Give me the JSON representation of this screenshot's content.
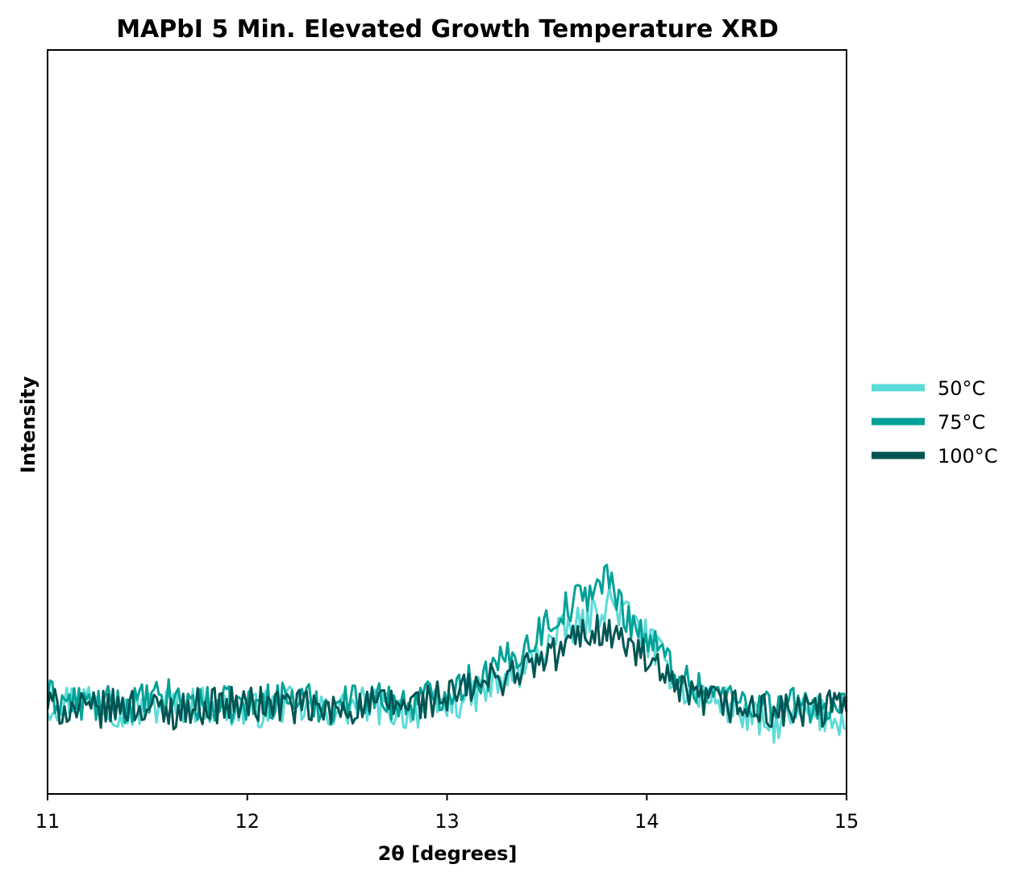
{
  "chart_data": {
    "type": "line",
    "title": "MAPbI 5 Min. Elevated Growth Temperature XRD",
    "xlabel": "2θ [degrees]",
    "ylabel": "Intensity",
    "xlim": [
      11,
      15
    ],
    "ylim": [
      0,
      100
    ],
    "xticks": [
      "11",
      "12",
      "13",
      "14",
      "15"
    ],
    "yticks_visible": false,
    "grid": false,
    "legend": {
      "placement": "outside-right",
      "entries": [
        "50°C",
        "75°C",
        "100°C"
      ]
    },
    "series": [
      {
        "name": "50°C",
        "color": "#5cdbd8",
        "x": [
          11.0,
          11.2,
          11.4,
          11.6,
          11.8,
          12.0,
          12.2,
          12.4,
          12.6,
          12.8,
          13.0,
          13.2,
          13.4,
          13.5,
          13.6,
          13.7,
          13.8,
          13.9,
          14.0,
          14.1,
          14.2,
          14.4,
          14.6,
          14.8,
          15.0
        ],
        "y": [
          12,
          13,
          11,
          12,
          12,
          11,
          12,
          11,
          12,
          11,
          12,
          14,
          17,
          20,
          22,
          23,
          26,
          24,
          21,
          17,
          14,
          12,
          9,
          11,
          10
        ]
      },
      {
        "name": "75°C",
        "color": "#03a197",
        "x": [
          11.0,
          11.2,
          11.4,
          11.6,
          11.8,
          12.0,
          12.2,
          12.4,
          12.6,
          12.8,
          13.0,
          13.2,
          13.4,
          13.5,
          13.6,
          13.7,
          13.8,
          13.9,
          14.0,
          14.1,
          14.2,
          14.4,
          14.6,
          14.8,
          15.0
        ],
        "y": [
          13,
          12,
          12,
          13,
          12,
          12,
          13,
          12,
          13,
          12,
          14,
          16,
          20,
          23,
          25,
          27,
          29,
          24,
          21,
          18,
          15,
          13,
          12,
          12,
          11
        ]
      },
      {
        "name": "100°C",
        "color": "#005553",
        "x": [
          11.0,
          11.2,
          11.4,
          11.6,
          11.8,
          12.0,
          12.2,
          12.4,
          12.6,
          12.8,
          13.0,
          13.2,
          13.4,
          13.5,
          13.6,
          13.7,
          13.8,
          13.9,
          14.0,
          14.1,
          14.2,
          14.4,
          14.6,
          14.8,
          15.0
        ],
        "y": [
          12,
          11,
          12,
          11,
          12,
          12,
          12,
          11,
          12,
          12,
          13,
          15,
          17,
          18,
          20,
          22,
          22,
          20,
          18,
          15,
          13,
          12,
          11,
          11,
          12
        ]
      }
    ]
  }
}
